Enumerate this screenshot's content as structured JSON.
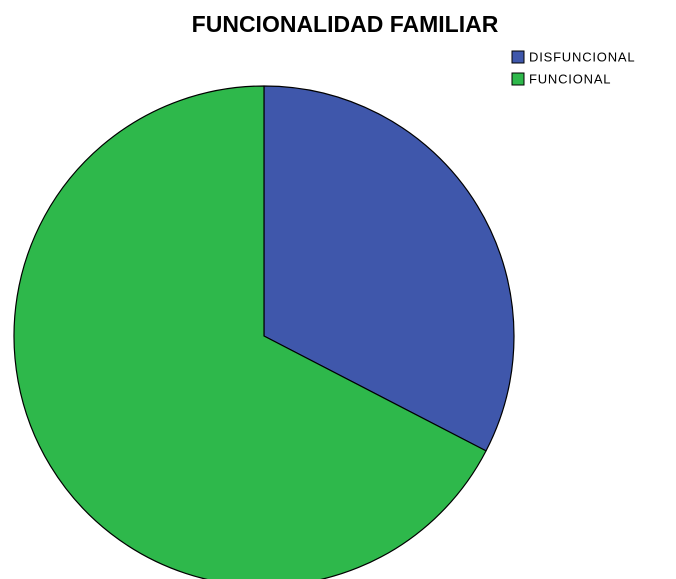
{
  "chart_data": {
    "type": "pie",
    "title": "FUNCIONALIDAD FAMILIAR",
    "categories": [
      "DISFUNCIONAL",
      "FUNCIONAL"
    ],
    "values": [
      32.6,
      67.4
    ],
    "colors": [
      "#3f57ab",
      "#2eb84b"
    ],
    "legend": "top-right"
  }
}
